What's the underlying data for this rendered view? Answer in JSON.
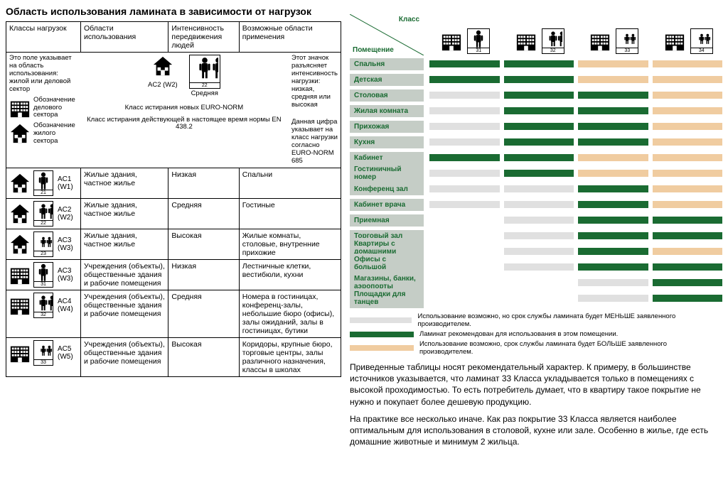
{
  "title": "Область использования ламината в зависимости от нагрузок",
  "headers": [
    "Классы нагрузок",
    "Области использования",
    "Интенсивность передвижения людей",
    "Возможные области применения"
  ],
  "explain": {
    "top": "Это поле указывает на область использования: жилой или деловой сектор",
    "biz": "Обозначение делового сектора",
    "home": "Обозначение жилого сектора",
    "wear": "Класс истирания новых EURO-NORM",
    "en438": "Класс истирания действующей в настоящее время нормы EN 438.2",
    "intensity": "Этот значок разъясняет интенсивность нагрузки: низкая, средняя или высокая",
    "euronorm": "Данная цифра указывает на класс нагрузки согласно EURO-NORM 685",
    "ac_label": "AC2 (W2)",
    "mid_label": "Средняя",
    "mid_num": "22"
  },
  "rows": [
    {
      "cls": "AC1 (W1)",
      "num": "21",
      "people": 1,
      "building": "home",
      "use": "Жилые здания, частное жилье",
      "intensity": "Низкая",
      "apply": "Спальни"
    },
    {
      "cls": "AC2 (W2)",
      "num": "22",
      "people": 2,
      "building": "home",
      "use": "Жилые здания, частное жилье",
      "intensity": "Средняя",
      "apply": "Гостиные"
    },
    {
      "cls": "AC3 (W3)",
      "num": "23",
      "people": 3,
      "building": "home",
      "use": "Жилые здания, частное жилье",
      "intensity": "Высокая",
      "apply": "Жилые комнаты, столовые, внутренние прихожие"
    },
    {
      "cls": "AC3 (W3)",
      "num": "31",
      "people": 1,
      "building": "biz",
      "use": "Учреждения (объекты), общественные здания и рабочие помещения",
      "intensity": "Низкая",
      "apply": "Лестничные клетки, вестибюли, кухни"
    },
    {
      "cls": "AC4 (W4)",
      "num": "32",
      "people": 2,
      "building": "biz",
      "use": "Учреждения (объекты), общественные здания и рабочие помещения",
      "intensity": "Средняя",
      "apply": "Номера в гостиницах, конференц-залы, небольшие бюро (офисы), залы ожиданий, залы в гостиницах, бутики"
    },
    {
      "cls": "AC5 (W5)",
      "num": "33",
      "people": 3,
      "building": "biz",
      "use": "Учреждения (объекты), общественные здания и рабочие помещения",
      "intensity": "Высокая",
      "apply": "Коридоры, крупные бюро, торговые центры, залы различного назначения, классы в школах"
    }
  ],
  "right": {
    "kl": "Класс",
    "pm": "Помещение",
    "class_nums": [
      "31",
      "32",
      "33",
      "34"
    ],
    "rooms": [
      {
        "label": "Спальня",
        "cells": [
          "g",
          "g",
          "o",
          "o"
        ]
      },
      {
        "label": "Детская",
        "cells": [
          "g",
          "g",
          "o",
          "o"
        ]
      },
      {
        "label": "Столовая",
        "cells": [
          "l",
          "g",
          "g",
          "o"
        ]
      },
      {
        "label": "Жилая комната",
        "cells": [
          "l",
          "g",
          "g",
          "o"
        ]
      },
      {
        "label": "Прихожая",
        "cells": [
          "l",
          "g",
          "g",
          "o"
        ]
      },
      {
        "label": "Кухня",
        "cells": [
          "l",
          "g",
          "g",
          "o"
        ]
      },
      {
        "label": "Кабинет",
        "cells": [
          "g",
          "g",
          "o",
          "o"
        ]
      },
      {
        "label": "Гостиничный номер",
        "cells": [
          "l",
          "g",
          "o",
          "o"
        ]
      },
      {
        "label": "Конференц зал",
        "cells": [
          "l",
          "l",
          "g",
          "o"
        ]
      },
      {
        "label": "Кабинет врача",
        "cells": [
          "l",
          "l",
          "g",
          "o"
        ]
      },
      {
        "label": "Приемная",
        "cells": [
          "",
          "l",
          "g",
          "g"
        ]
      },
      {
        "label": "Торговый зал",
        "cells": [
          "",
          "l",
          "g",
          "g"
        ]
      },
      {
        "label": "Квартиры с домашними животными",
        "cells": [
          "",
          "l",
          "g",
          "o"
        ]
      },
      {
        "label": "Офисы с большой проходимостью",
        "cells": [
          "",
          "l",
          "g",
          "g"
        ]
      },
      {
        "label": "Магазины,  банки, аэропорты",
        "cells": [
          "",
          "",
          "l",
          "g"
        ]
      },
      {
        "label": "Площадки для танцев",
        "cells": [
          "",
          "",
          "l",
          "g"
        ]
      }
    ],
    "legend": [
      {
        "color": "#e0e0e0",
        "text": "Использование возможно, но срок службы ламината будет МЕНЬШЕ заявленного производителем."
      },
      {
        "color": "#1a6b32",
        "text": "Ламинат рекомендован для использования в этом помещении."
      },
      {
        "color": "#f0cca0",
        "text": "Использование возможно, срок службы ламината будет БОЛЬШЕ заявленного производителем."
      }
    ],
    "notes": [
      "Приведенные таблицы носят рекомендательный характер. К примеру, в большинстве источников указывается, что ламинат 33 Класса укладывается только в помещениях с высокой проходимостью. То есть потребитель думает, что в квартиру такое покрытие не нужно и покупает более дешевую продукцию.",
      "На практике все несколько иначе. Как раз покрытие 33 Класса является наиболее оптимальным для использования в столовой, кухне или зале. Особенно в жилье, где есть домашние животные и минимум 2 жильца."
    ]
  },
  "colors": {
    "green": "#1a6b32",
    "light": "#e0e0e0",
    "orange": "#f0cca0",
    "header_bg": "#c5cdc6"
  }
}
